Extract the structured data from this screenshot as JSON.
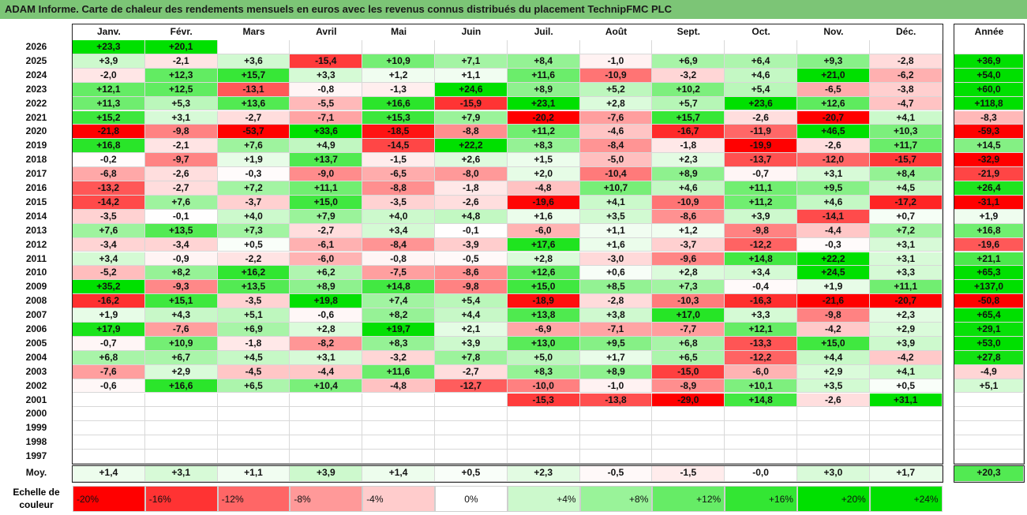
{
  "title": "ADAM Informe. Carte de chaleur des rendements mensuels en euros avec les revenus connus distribués du placement TechnipFMC PLC",
  "chart_data": {
    "type": "heatmap",
    "months": [
      "Janv.",
      "Févr.",
      "Mars",
      "Avril",
      "Mai",
      "Juin",
      "Juil.",
      "Août",
      "Sept.",
      "Oct.",
      "Nov.",
      "Déc."
    ],
    "year_header": "Année",
    "rows": [
      {
        "year": "2026",
        "values": [
          "+23,3",
          "+20,1",
          null,
          null,
          null,
          null,
          null,
          null,
          null,
          null,
          null,
          null
        ],
        "annual": null
      },
      {
        "year": "2025",
        "values": [
          "+3,9",
          "-2,1",
          "+3,6",
          "-15,4",
          "+10,9",
          "+7,1",
          "+8,4",
          "-1,0",
          "+6,9",
          "+6,4",
          "+9,3",
          "-2,8"
        ],
        "annual": "+36,9"
      },
      {
        "year": "2024",
        "values": [
          "-2,0",
          "+12,3",
          "+15,7",
          "+3,3",
          "+1,2",
          "+1,1",
          "+11,6",
          "-10,9",
          "-3,2",
          "+4,6",
          "+21,0",
          "-6,2"
        ],
        "annual": "+54,0"
      },
      {
        "year": "2023",
        "values": [
          "+12,1",
          "+12,5",
          "-13,1",
          "-0,8",
          "-1,3",
          "+24,6",
          "+8,9",
          "+5,2",
          "+10,2",
          "+5,4",
          "-6,5",
          "-3,8"
        ],
        "annual": "+60,0"
      },
      {
        "year": "2022",
        "values": [
          "+11,3",
          "+5,3",
          "+13,6",
          "-5,5",
          "+16,6",
          "-15,9",
          "+23,1",
          "+2,8",
          "+5,7",
          "+23,6",
          "+12,6",
          "-4,7"
        ],
        "annual": "+118,8"
      },
      {
        "year": "2021",
        "values": [
          "+15,2",
          "+3,1",
          "-2,7",
          "-7,1",
          "+15,3",
          "+7,9",
          "-20,2",
          "-7,6",
          "+15,7",
          "-2,6",
          "-20,7",
          "+4,1"
        ],
        "annual": "-8,3"
      },
      {
        "year": "2020",
        "values": [
          "-21,8",
          "-9,8",
          "-53,7",
          "+33,6",
          "-18,5",
          "-8,8",
          "+11,2",
          "-4,6",
          "-16,7",
          "-11,9",
          "+46,5",
          "+10,3"
        ],
        "annual": "-59,3"
      },
      {
        "year": "2019",
        "values": [
          "+16,8",
          "-2,1",
          "+7,6",
          "+4,9",
          "-14,5",
          "+22,2",
          "+8,3",
          "-8,4",
          "-1,8",
          "-19,9",
          "-2,6",
          "+11,7"
        ],
        "annual": "+14,5"
      },
      {
        "year": "2018",
        "values": [
          "-0,2",
          "-9,7",
          "+1,9",
          "+13,7",
          "-1,5",
          "+2,6",
          "+1,5",
          "-5,0",
          "+2,3",
          "-13,7",
          "-12,0",
          "-15,7"
        ],
        "annual": "-32,9"
      },
      {
        "year": "2017",
        "values": [
          "-6,8",
          "-2,6",
          "-0,3",
          "-9,0",
          "-6,5",
          "-8,0",
          "+2,0",
          "-10,4",
          "+8,9",
          "-0,7",
          "+3,1",
          "+8,4"
        ],
        "annual": "-21,9"
      },
      {
        "year": "2016",
        "values": [
          "-13,2",
          "-2,7",
          "+7,2",
          "+11,1",
          "-8,8",
          "-1,8",
          "-4,8",
          "+10,7",
          "+4,6",
          "+11,1",
          "+9,5",
          "+4,5"
        ],
        "annual": "+26,4"
      },
      {
        "year": "2015",
        "values": [
          "-14,2",
          "+7,6",
          "-3,7",
          "+15,0",
          "-3,5",
          "-2,6",
          "-19,6",
          "+4,1",
          "-10,9",
          "+11,2",
          "+4,6",
          "-17,2"
        ],
        "annual": "-31,1"
      },
      {
        "year": "2014",
        "values": [
          "-3,5",
          "-0,1",
          "+4,0",
          "+7,9",
          "+4,0",
          "+4,8",
          "+1,6",
          "+3,5",
          "-8,6",
          "+3,9",
          "-14,1",
          "+0,7"
        ],
        "annual": "+1,9"
      },
      {
        "year": "2013",
        "values": [
          "+7,6",
          "+13,5",
          "+7,3",
          "-2,7",
          "+3,4",
          "-0,1",
          "-6,0",
          "+1,1",
          "+1,2",
          "-9,8",
          "-4,4",
          "+7,2"
        ],
        "annual": "+16,8"
      },
      {
        "year": "2012",
        "values": [
          "-3,4",
          "-3,4",
          "+0,5",
          "-6,1",
          "-8,4",
          "-3,9",
          "+17,6",
          "+1,6",
          "-3,7",
          "-12,2",
          "-0,3",
          "+3,1"
        ],
        "annual": "-19,6"
      },
      {
        "year": "2011",
        "values": [
          "+3,4",
          "-0,9",
          "-2,2",
          "-6,0",
          "-0,8",
          "-0,5",
          "+2,8",
          "-3,0",
          "-9,6",
          "+14,8",
          "+22,2",
          "+3,1"
        ],
        "annual": "+21,1"
      },
      {
        "year": "2010",
        "values": [
          "-5,2",
          "+8,2",
          "+16,2",
          "+6,2",
          "-7,5",
          "-8,6",
          "+12,6",
          "+0,6",
          "+2,8",
          "+3,4",
          "+24,5",
          "+3,3"
        ],
        "annual": "+65,3"
      },
      {
        "year": "2009",
        "values": [
          "+35,2",
          "-9,3",
          "+13,5",
          "+8,9",
          "+14,8",
          "-9,8",
          "+15,0",
          "+8,5",
          "+7,3",
          "-0,4",
          "+1,9",
          "+11,1"
        ],
        "annual": "+137,0"
      },
      {
        "year": "2008",
        "values": [
          "-16,2",
          "+15,1",
          "-3,5",
          "+19,8",
          "+7,4",
          "+5,4",
          "-18,9",
          "-2,8",
          "-10,3",
          "-16,3",
          "-21,6",
          "-20,7"
        ],
        "annual": "-50,8"
      },
      {
        "year": "2007",
        "values": [
          "+1,9",
          "+4,3",
          "+5,1",
          "-0,6",
          "+8,2",
          "+4,4",
          "+13,8",
          "+3,8",
          "+17,0",
          "+3,3",
          "-9,8",
          "+2,3"
        ],
        "annual": "+65,4"
      },
      {
        "year": "2006",
        "values": [
          "+17,9",
          "-7,6",
          "+6,9",
          "+2,8",
          "+19,7",
          "+2,1",
          "-6,9",
          "-7,1",
          "-7,7",
          "+12,1",
          "-4,2",
          "+2,9"
        ],
        "annual": "+29,1"
      },
      {
        "year": "2005",
        "values": [
          "-0,7",
          "+10,9",
          "-1,8",
          "-8,2",
          "+8,3",
          "+3,9",
          "+13,0",
          "+9,5",
          "+6,8",
          "-13,3",
          "+15,0",
          "+3,9"
        ],
        "annual": "+53,0"
      },
      {
        "year": "2004",
        "values": [
          "+6,8",
          "+6,7",
          "+4,5",
          "+3,1",
          "-3,2",
          "+7,8",
          "+5,0",
          "+1,7",
          "+6,5",
          "-12,2",
          "+4,4",
          "-4,2"
        ],
        "annual": "+27,8"
      },
      {
        "year": "2003",
        "values": [
          "-7,6",
          "+2,9",
          "-4,5",
          "-4,4",
          "+11,6",
          "-2,7",
          "+8,3",
          "+8,9",
          "-15,0",
          "-6,0",
          "+2,9",
          "+4,1"
        ],
        "annual": "-4,9"
      },
      {
        "year": "2002",
        "values": [
          "-0,6",
          "+16,6",
          "+6,5",
          "+10,4",
          "-4,8",
          "-12,7",
          "-10,0",
          "-1,0",
          "-8,9",
          "+10,1",
          "+3,5",
          "+0,5"
        ],
        "annual": "+5,1"
      },
      {
        "year": "2001",
        "values": [
          null,
          null,
          null,
          null,
          null,
          null,
          "-15,3",
          "-13,8",
          "-29,0",
          "+14,8",
          "-2,6",
          "+31,1"
        ],
        "annual": null
      },
      {
        "year": "2000",
        "values": [
          null,
          null,
          null,
          null,
          null,
          null,
          null,
          null,
          null,
          null,
          null,
          null
        ],
        "annual": null
      },
      {
        "year": "1999",
        "values": [
          null,
          null,
          null,
          null,
          null,
          null,
          null,
          null,
          null,
          null,
          null,
          null
        ],
        "annual": null
      },
      {
        "year": "1998",
        "values": [
          null,
          null,
          null,
          null,
          null,
          null,
          null,
          null,
          null,
          null,
          null,
          null
        ],
        "annual": null
      },
      {
        "year": "1997",
        "values": [
          null,
          null,
          null,
          null,
          null,
          null,
          null,
          null,
          null,
          null,
          null,
          null
        ],
        "annual": null
      }
    ],
    "average": {
      "label": "Moy.",
      "values": [
        "+1,4",
        "+3,1",
        "+1,1",
        "+3,9",
        "+1,4",
        "+0,5",
        "+2,3",
        "-0,5",
        "-1,5",
        "-0,0",
        "+3,0",
        "+1,7"
      ],
      "annual": "+20,3"
    },
    "legend": {
      "label_line1": "Echelle de",
      "label_line2": "couleur",
      "steps": [
        "-20%",
        "-16%",
        "-12%",
        "-8%",
        "-4%",
        "0%",
        "+4%",
        "+8%",
        "+12%",
        "+16%",
        "+20%",
        "+24%"
      ]
    },
    "colors": {
      "negative_max": "#ff0000",
      "positive_max": "#00e000",
      "neutral": "#ffffff",
      "title_bar": "#7cc576"
    }
  }
}
